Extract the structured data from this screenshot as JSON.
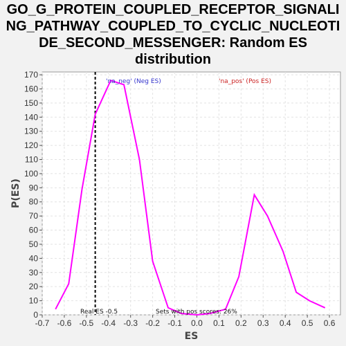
{
  "chart_data": {
    "type": "line",
    "title_lines": [
      "GO_G_PROTEIN_COUPLED_RECEPTOR_SIGNALI",
      "NG_PATHWAY_COUPLED_TO_CYCLIC_NUCLEOTI",
      "DE_SECOND_MESSENGER: Random ES",
      "distribution"
    ],
    "xlabel": "ES",
    "ylabel": "P(ES)",
    "xlim": [
      -0.7,
      0.65
    ],
    "ylim": [
      0,
      172
    ],
    "xticks": [
      -0.7,
      -0.6,
      -0.5,
      -0.4,
      -0.3,
      -0.2,
      -0.1,
      0.0,
      0.1,
      0.2,
      0.3,
      0.4,
      0.5,
      0.6
    ],
    "xtick_labels": [
      "-0.7",
      "-0.6",
      "-0.5",
      "-0.4",
      "-0.3",
      "-0.2",
      "-0.1",
      "0.0",
      "0.1",
      "0.2",
      "0.3",
      "0.4",
      "0.5",
      "0.6"
    ],
    "yticks": [
      0,
      10,
      20,
      30,
      40,
      50,
      60,
      70,
      80,
      90,
      100,
      110,
      120,
      130,
      140,
      150,
      160,
      170
    ],
    "ytick_labels": [
      "0",
      "10",
      "20",
      "30",
      "40",
      "50",
      "60",
      "70",
      "80",
      "90",
      "100",
      "110",
      "120",
      "130",
      "140",
      "150",
      "160",
      "170"
    ],
    "grid": true,
    "series": [
      {
        "color": "#ff00ff",
        "x": [
          -0.64,
          -0.58,
          -0.52,
          -0.46,
          -0.39,
          -0.33,
          -0.26,
          -0.2,
          -0.13,
          -0.07,
          0.0,
          0.06,
          0.13,
          0.19,
          0.26,
          0.32,
          0.39,
          0.45,
          0.51,
          0.58
        ],
        "y": [
          4,
          22,
          89,
          142,
          166,
          163,
          110,
          38,
          5,
          1,
          0,
          1,
          4,
          27,
          85,
          70,
          45,
          16,
          10,
          5
        ]
      }
    ],
    "real_es_x": -0.46,
    "legend": {
      "neg": {
        "text": "'na_neg' (Neg ES)",
        "color": "#3333cc"
      },
      "pos": {
        "text": "'na_pos' (Pos ES)",
        "color": "#cc2222"
      }
    },
    "annotations": {
      "real_es": "Real ES -0.5",
      "sets_pos": "Sets with pos scores: 26%"
    }
  }
}
